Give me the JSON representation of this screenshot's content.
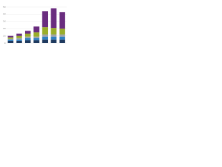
{
  "chart_data": {
    "type": "stacked-bar",
    "categories": [
      null,
      null,
      null,
      null,
      null,
      null,
      null
    ],
    "series": [
      {
        "color": "#1f3a5f",
        "values": [
          3,
          3,
          4,
          4,
          5,
          5,
          5
        ]
      },
      {
        "color": "#2f7fc1",
        "values": [
          2,
          2,
          3,
          3,
          4,
          4,
          4
        ]
      },
      {
        "color": "#a0a4a8",
        "values": [
          1,
          2,
          2,
          2,
          3,
          3,
          3
        ]
      },
      {
        "color": "#9aad2a",
        "values": [
          2,
          3,
          4,
          6,
          10,
          9,
          8
        ]
      },
      {
        "color": "#6a2d7f",
        "values": [
          2,
          3,
          4,
          8,
          22,
          27,
          23
        ]
      }
    ],
    "ylim": [
      0,
      50
    ],
    "yticks": [
      0,
      10,
      20,
      30,
      40,
      50
    ],
    "grid": true
  }
}
